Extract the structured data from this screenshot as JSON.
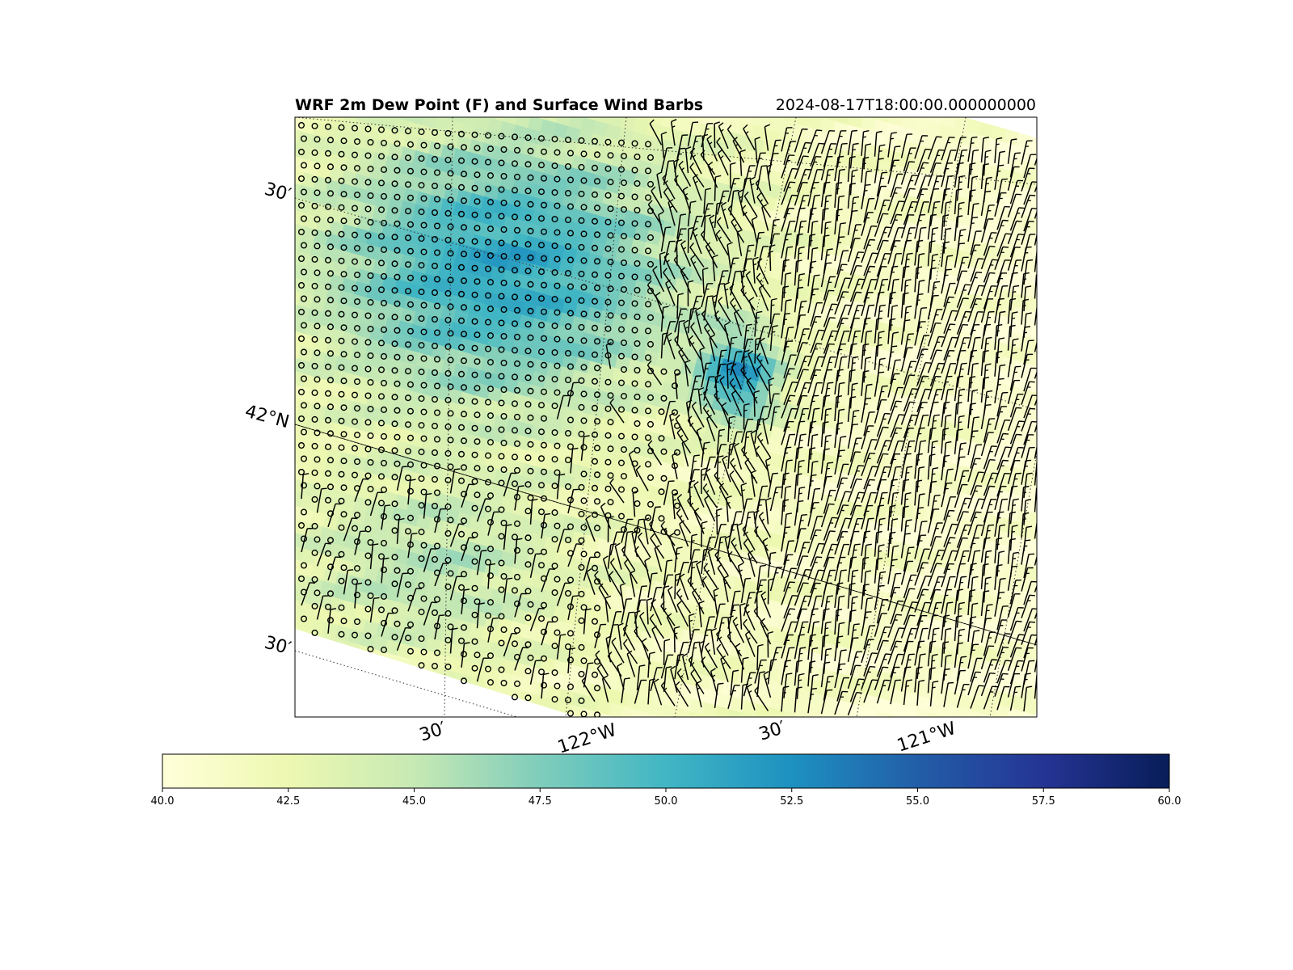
{
  "chart_data": {
    "type": "heatmap",
    "title": "WRF 2m Dew Point (F) and Surface Wind Barbs",
    "valid_time": "2024-08-17T18:00:00.000000000",
    "variable": "2m Dew Point (F)",
    "overlay": "Surface Wind Barbs",
    "colormap": "YlGnBu",
    "colormap_stops": [
      "#ffffd9",
      "#edf8b1",
      "#c7e9b4",
      "#7fcdbb",
      "#41b6c4",
      "#1d91c0",
      "#225ea8",
      "#253494",
      "#081d58"
    ],
    "colorbar": {
      "range": [
        40.0,
        60.0
      ],
      "ticks": [
        "40.0",
        "42.5",
        "45.0",
        "47.5",
        "50.0",
        "52.5",
        "55.0",
        "57.5",
        "60.0"
      ],
      "orientation": "horizontal"
    },
    "lat_labels": [
      "30′",
      "42°N",
      "30′"
    ],
    "lon_labels": [
      "30′",
      "122°W",
      "30′",
      "121°W"
    ],
    "gridlines": "dotted",
    "field_description_values": {
      "northwest_region_dewpoint_F": 51,
      "central_band_dewpoint_F": 47,
      "east_region_dewpoint_F": 41.5,
      "small_core_dewpoint_F": 52
    }
  }
}
